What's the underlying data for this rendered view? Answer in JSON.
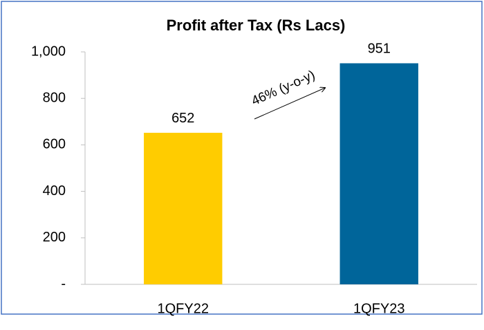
{
  "chart_data": {
    "type": "bar",
    "title": "Profit after Tax (Rs Lacs)",
    "categories": [
      "1QFY22",
      "1QFY23"
    ],
    "values": [
      652,
      951
    ],
    "colors": [
      "#FFCC00",
      "#00659A"
    ],
    "ylim": [
      0,
      1000
    ],
    "yticks": [
      {
        "value": 0,
        "label": "-"
      },
      200,
      400,
      600,
      800,
      {
        "value": 1000,
        "label": "1,000"
      }
    ],
    "annotation": "46% (y-o-y)"
  }
}
